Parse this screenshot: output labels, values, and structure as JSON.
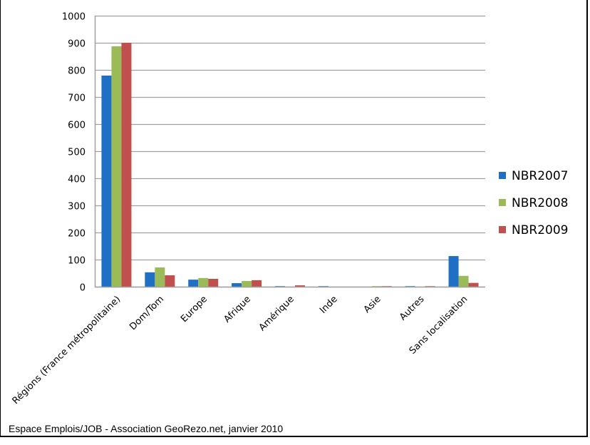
{
  "chart_data": {
    "type": "bar",
    "title": "",
    "xlabel": "",
    "ylabel": "",
    "ylim": [
      0,
      1000
    ],
    "yticks": [
      0,
      100,
      200,
      300,
      400,
      500,
      600,
      700,
      800,
      900,
      1000
    ],
    "grid": true,
    "legend_position": "right",
    "categories": [
      "Régions (France métropolitaine)",
      "Dom/Tom",
      "Europe",
      "Afrique",
      "Amérique",
      "Inde",
      "Asie",
      "Autres",
      "Sans localisation"
    ],
    "series": [
      {
        "name": "NBR2007",
        "color": "#1f6fc4",
        "values": [
          779,
          53,
          26,
          13,
          2,
          2,
          0,
          2,
          113
        ]
      },
      {
        "name": "NBR2008",
        "color": "#9bbb59",
        "values": [
          887,
          71,
          32,
          21,
          0,
          0,
          2,
          0,
          40
        ]
      },
      {
        "name": "NBR2009",
        "color": "#c0504d",
        "values": [
          900,
          42,
          29,
          24,
          5,
          0,
          2,
          2,
          14
        ]
      }
    ]
  },
  "caption": "Espace Emplois/JOB - Association GeoRezo.net, janvier 2010"
}
